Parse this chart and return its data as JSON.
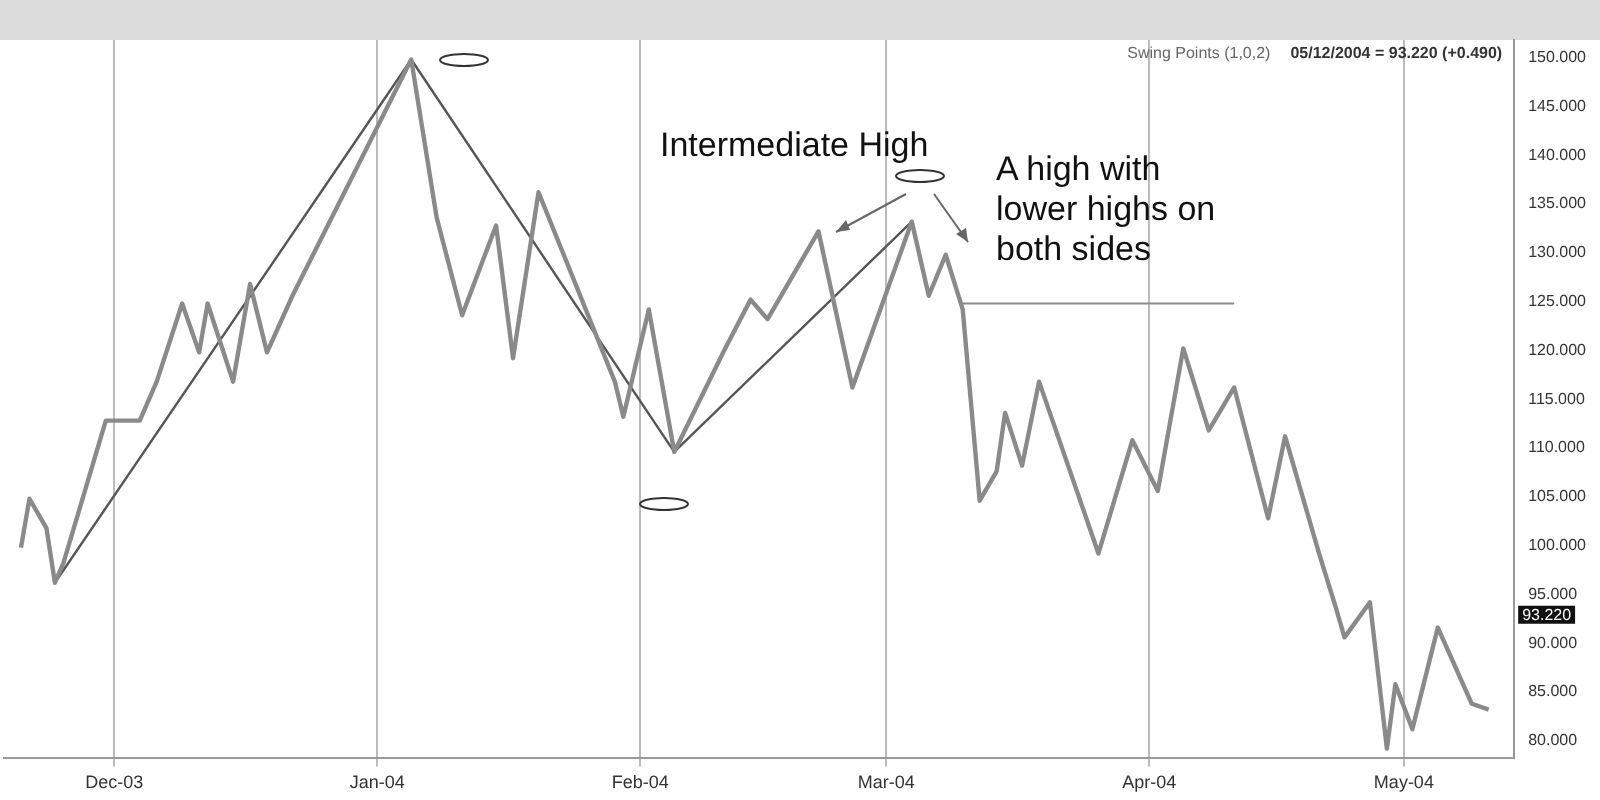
{
  "chart_data": {
    "type": "line",
    "marker": "none",
    "legend": false,
    "grid": "x",
    "line_style": "solid",
    "xlim": [
      "2003-11-18",
      "2004-05-14"
    ],
    "xticks": [
      {
        "value": "2003-12-01",
        "label": "Dec-03"
      },
      {
        "value": "2004-01-01",
        "label": "Jan-04"
      },
      {
        "value": "2004-02-01",
        "label": "Feb-04"
      },
      {
        "value": "2004-03-01",
        "label": "Mar-04"
      },
      {
        "value": "2004-04-01",
        "label": "Apr-04"
      },
      {
        "value": "2004-05-01",
        "label": "May-04"
      }
    ],
    "ylim": [
      78.2,
      151.8
    ],
    "yticks": [
      {
        "value": 80,
        "label": "80.000"
      },
      {
        "value": 85,
        "label": "85.000"
      },
      {
        "value": 90,
        "label": "90.000"
      },
      {
        "value": 95,
        "label": "95.000"
      },
      {
        "value": 100,
        "label": "100.000"
      },
      {
        "value": 105,
        "label": "105.000"
      },
      {
        "value": 110,
        "label": "110.000"
      },
      {
        "value": 115,
        "label": "115.000"
      },
      {
        "value": 120,
        "label": "120.000"
      },
      {
        "value": 125,
        "label": "125.000"
      },
      {
        "value": 130,
        "label": "130.000"
      },
      {
        "value": 135,
        "label": "135.000"
      },
      {
        "value": 140,
        "label": "140.000"
      },
      {
        "value": 145,
        "label": "145.000"
      },
      {
        "value": 150,
        "label": "150.000"
      }
    ],
    "series": [
      {
        "type": "line",
        "color": "#8a8a8a",
        "x": [
          "2003-11-20",
          "2003-11-21",
          "2003-11-23",
          "2003-11-24",
          "2003-11-25",
          "2003-11-30",
          "2003-12-04",
          "2003-12-06",
          "2003-12-09",
          "2003-12-11",
          "2003-12-12",
          "2003-12-15",
          "2003-12-17",
          "2003-12-19",
          "2003-12-22",
          "2004-01-05",
          "2004-01-08",
          "2004-01-11",
          "2004-01-15",
          "2004-01-17",
          "2004-01-20",
          "2004-01-29",
          "2004-01-30",
          "2004-02-02",
          "2004-02-05",
          "2004-02-11",
          "2004-02-14",
          "2004-02-16",
          "2004-02-22",
          "2004-02-26",
          "2004-03-04",
          "2004-03-06",
          "2004-03-08",
          "2004-03-10",
          "2004-03-12",
          "2004-03-14",
          "2004-03-15",
          "2004-03-17",
          "2004-03-19",
          "2004-03-26",
          "2004-03-30",
          "2004-04-02",
          "2004-04-05",
          "2004-04-08",
          "2004-04-11",
          "2004-04-15",
          "2004-04-17",
          "2004-04-21",
          "2004-04-23",
          "2004-04-24",
          "2004-04-27",
          "2004-04-29",
          "2004-04-30",
          "2004-05-02",
          "2004-05-05",
          "2004-05-09",
          "2004-05-11"
        ],
        "values": [
          99.8,
          104.8,
          101.8,
          96.2,
          98.2,
          112.8,
          112.8,
          116.8,
          124.8,
          119.8,
          124.8,
          116.8,
          126.8,
          119.8,
          125.6,
          149.8,
          133.6,
          123.6,
          132.8,
          119.2,
          136.2,
          116.8,
          113.2,
          124.2,
          109.6,
          120.2,
          125.2,
          123.2,
          132.2,
          116.2,
          133.2,
          125.6,
          129.8,
          124.2,
          104.6,
          107.6,
          113.6,
          108.2,
          116.8,
          99.2,
          110.8,
          105.6,
          120.2,
          111.8,
          116.2,
          102.8,
          111.2,
          99.2,
          93.6,
          90.6,
          94.2,
          79.2,
          85.8,
          81.2,
          91.6,
          83.8,
          83.2
        ]
      },
      {
        "type": "line",
        "color": "#555555",
        "x": [
          "2003-11-24",
          "2004-01-05",
          "2004-02-05",
          "2004-03-04"
        ],
        "values": [
          96.2,
          149.8,
          109.6,
          133.2
        ]
      }
    ],
    "ref_lines": [
      {
        "axis": "y",
        "value": 124.8,
        "color": "#8a8a8a"
      }
    ],
    "annotations": [
      "Intermediate High",
      "A high with lower highs on both sides",
      "Swing Points (1,0,2)",
      "05/12/2004 = 93.220 (+0.490)",
      "93.220"
    ]
  }
}
